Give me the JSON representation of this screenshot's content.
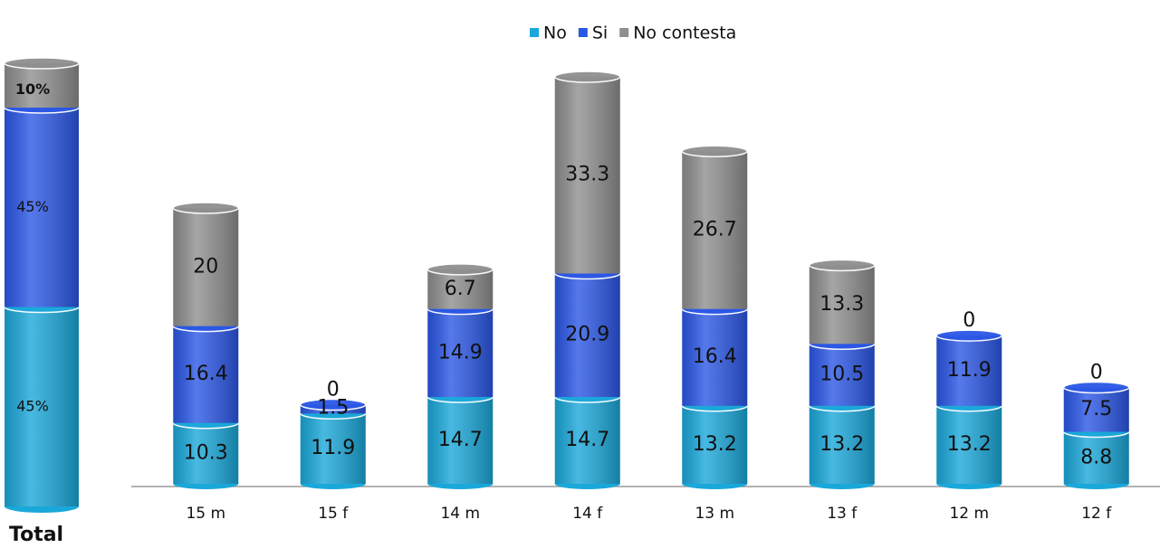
{
  "chart_data": [
    {
      "type": "bar",
      "title": "Total",
      "values": [
        45,
        45,
        10
      ],
      "value_labels": [
        "45%",
        "45%",
        "10%"
      ],
      "colors": [
        "#1aa8da",
        "#2b57e6",
        "#8f8f8f"
      ]
    },
    {
      "type": "bar",
      "categories": [
        "15  m",
        "15  f",
        "14  m",
        "14  f",
        "13 m",
        "13  f",
        "12  m",
        "12  f"
      ],
      "series": [
        {
          "name": "No",
          "color": "#1aa8da",
          "values": [
            10.3,
            11.9,
            14.7,
            14.7,
            13.2,
            13.2,
            13.2,
            8.8
          ]
        },
        {
          "name": "Si",
          "color": "#2b57e6",
          "values": [
            16.4,
            1.5,
            14.9,
            20.9,
            16.4,
            10.5,
            11.9,
            7.5
          ]
        },
        {
          "name": "No contesta",
          "color": "#8f8f8f",
          "values": [
            20,
            0,
            6.7,
            33.3,
            26.7,
            13.3,
            0,
            0
          ]
        }
      ]
    }
  ]
}
